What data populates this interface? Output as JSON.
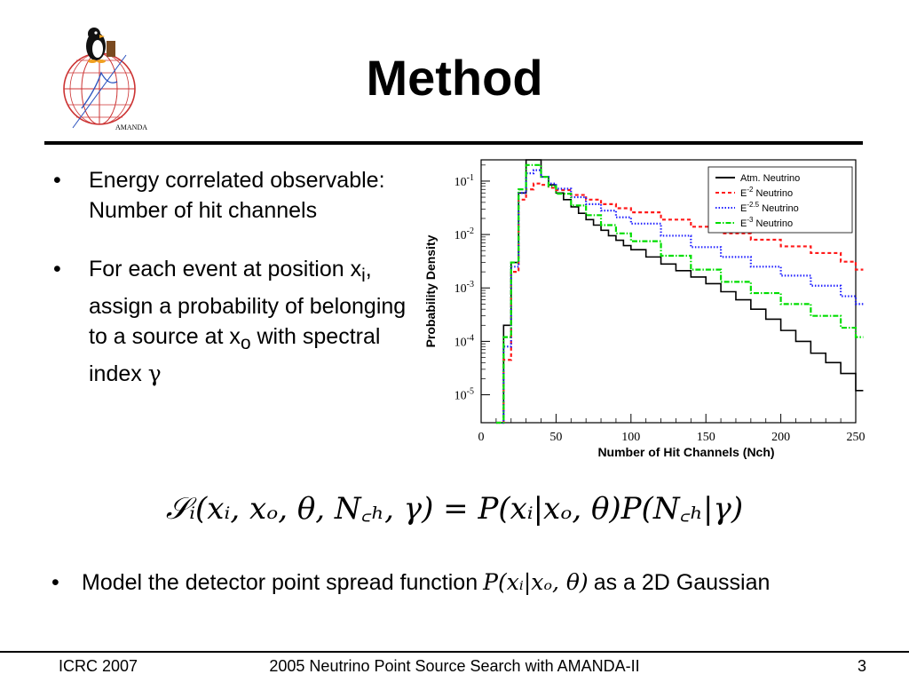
{
  "slide": {
    "title": "Method",
    "logo_text": "AMANDA",
    "bullets": [
      {
        "text": "Energy correlated observable: Number of hit channels"
      },
      {
        "pre": "For each event at position x",
        "sub_i": "i",
        "mid": ", assign a probability of belonging to a source at x",
        "sub_o": "o",
        "post": " with spectral index ",
        "gamma": "γ"
      }
    ],
    "equation": "𝒮ᵢ(xᵢ, xₒ, θ, N꜀ₕ, γ) = P(xᵢ|xₒ, θ)P(N꜀ₕ|γ)",
    "bullet3": {
      "pre": "Model the detector point spread function",
      "math": "P(xᵢ|xₒ, θ)",
      "post": "as a 2D Gaussian"
    }
  },
  "footer": {
    "left": "ICRC 2007",
    "center": "2005 Neutrino Point Source Search with AMANDA-II",
    "right": "3"
  },
  "chart_data": {
    "type": "line",
    "xlabel": "Number of Hit Channels (Nch)",
    "ylabel": "Probability Density",
    "xlim": [
      0,
      250
    ],
    "ylim": [
      3e-06,
      0.25
    ],
    "yscale": "log",
    "x_ticks": [
      "0",
      "50",
      "100",
      "150",
      "200",
      "250"
    ],
    "y_ticks": [
      {
        "base": "10",
        "exp": "-1",
        "value": 0.1
      },
      {
        "base": "10",
        "exp": "-2",
        "value": 0.01
      },
      {
        "base": "10",
        "exp": "-3",
        "value": 0.001
      },
      {
        "base": "10",
        "exp": "-4",
        "value": 0.0001
      },
      {
        "base": "10",
        "exp": "-5",
        "value": 1e-05
      }
    ],
    "legend_position": "top-right",
    "series": [
      {
        "name": "Atm. Neutrino",
        "legend_base": "Atm. Neutrino",
        "legend_exp": "",
        "legend_tail": "",
        "color": "#000000",
        "dash": "",
        "x": [
          10,
          15,
          20,
          25,
          30,
          35,
          40,
          45,
          50,
          55,
          60,
          65,
          70,
          75,
          80,
          85,
          90,
          95,
          100,
          110,
          120,
          130,
          140,
          150,
          160,
          170,
          180,
          190,
          200,
          210,
          220,
          230,
          240,
          250
        ],
        "y": [
          3e-06,
          0.0002,
          0.003,
          0.06,
          0.25,
          0.25,
          0.12,
          0.085,
          0.06,
          0.045,
          0.033,
          0.025,
          0.019,
          0.015,
          0.012,
          0.0095,
          0.0078,
          0.0062,
          0.0052,
          0.0038,
          0.0028,
          0.0021,
          0.0016,
          0.0012,
          0.00085,
          0.0006,
          0.0004,
          0.00026,
          0.00016,
          0.0001,
          6e-05,
          4e-05,
          2.5e-05,
          1.2e-05
        ]
      },
      {
        "name": "E⁻² Neutrino",
        "legend_base": "E",
        "legend_exp": "-2",
        "legend_tail": " Neutrino",
        "color": "#ff1a1a",
        "dash": "4,3",
        "x": [
          10,
          15,
          20,
          25,
          30,
          35,
          40,
          45,
          50,
          60,
          70,
          80,
          90,
          100,
          120,
          140,
          160,
          180,
          200,
          220,
          240,
          250
        ],
        "y": [
          3e-06,
          4.5e-05,
          0.002,
          0.045,
          0.07,
          0.09,
          0.085,
          0.075,
          0.068,
          0.055,
          0.045,
          0.037,
          0.031,
          0.026,
          0.019,
          0.014,
          0.0105,
          0.008,
          0.006,
          0.0045,
          0.0031,
          0.0022
        ]
      },
      {
        "name": "E⁻²·⁵ Neutrino",
        "legend_base": "E",
        "legend_exp": "-2.5",
        "legend_tail": " Neutrino",
        "color": "#2020ff",
        "dash": "1.5,2",
        "x": [
          10,
          15,
          20,
          25,
          30,
          35,
          40,
          45,
          50,
          60,
          70,
          80,
          90,
          100,
          120,
          140,
          160,
          180,
          200,
          220,
          240,
          250
        ],
        "y": [
          3e-06,
          8e-05,
          0.0025,
          0.06,
          0.14,
          0.16,
          0.12,
          0.09,
          0.072,
          0.05,
          0.037,
          0.028,
          0.021,
          0.016,
          0.0095,
          0.0058,
          0.0038,
          0.0025,
          0.0017,
          0.0011,
          0.0007,
          0.0005
        ]
      },
      {
        "name": "E⁻³ Neutrino",
        "legend_base": "E",
        "legend_exp": "-3",
        "legend_tail": " Neutrino",
        "color": "#00dd00",
        "dash": "6,2,1.5,2",
        "x": [
          10,
          15,
          20,
          25,
          30,
          35,
          40,
          45,
          50,
          60,
          70,
          80,
          90,
          100,
          120,
          140,
          160,
          180,
          200,
          220,
          240,
          250
        ],
        "y": [
          3e-06,
          0.00012,
          0.003,
          0.07,
          0.2,
          0.2,
          0.12,
          0.08,
          0.058,
          0.035,
          0.023,
          0.015,
          0.0105,
          0.0075,
          0.004,
          0.0022,
          0.0013,
          0.0008,
          0.0005,
          0.0003,
          0.00018,
          0.00012
        ]
      }
    ]
  }
}
